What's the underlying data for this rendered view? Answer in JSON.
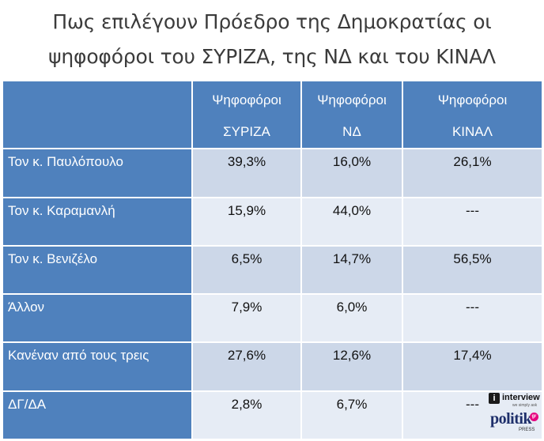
{
  "title_line1": "Πως επιλέγουν Πρόεδρο της Δημοκρατίας οι",
  "title_line2": "ψηφοφόροι του ΣΥΡΙΖΑ, της ΝΔ και του ΚΙΝΑΛ",
  "logo": {
    "interview_text": "interview",
    "tagline": "we simply ask",
    "politik_text": "politik",
    "badge_text": "gr",
    "press_text": "PRESS"
  },
  "chart_data": {
    "type": "table",
    "title": "Πως επιλέγουν Πρόεδρο της Δημοκρατίας οι ψηφοφόροι του ΣΥΡΙΖΑ, της ΝΔ και του ΚΙΝΑΛ",
    "columns": [
      {
        "line1": "Ψηφοφόροι",
        "line2": "ΣΥΡΙΖΑ"
      },
      {
        "line1": "Ψηφοφόροι",
        "line2": "ΝΔ"
      },
      {
        "line1": "Ψηφοφόροι",
        "line2": "ΚΙΝΑΛ"
      }
    ],
    "rows": [
      {
        "label": "Τον κ. Παυλόπουλο",
        "values": [
          "39,3%",
          "16,0%",
          "26,1%"
        ]
      },
      {
        "label": "Τον κ. Καραμανλή",
        "values": [
          "15,9%",
          "44,0%",
          "---"
        ]
      },
      {
        "label": "Τον κ. Βενιζέλο",
        "values": [
          "6,5%",
          "14,7%",
          "56,5%"
        ]
      },
      {
        "label": "Άλλον",
        "values": [
          "7,9%",
          "6,0%",
          "---"
        ]
      },
      {
        "label": "Κανέναν από τους τρεις",
        "values": [
          "27,6%",
          "12,6%",
          "17,4%"
        ]
      },
      {
        "label": "ΔΓ/ΔΑ",
        "values": [
          "2,8%",
          "6,7%",
          "---"
        ]
      }
    ],
    "colors": {
      "header": "#4f81bd",
      "row_odd": "#ccd7e8",
      "row_even": "#e6ecf5"
    }
  }
}
